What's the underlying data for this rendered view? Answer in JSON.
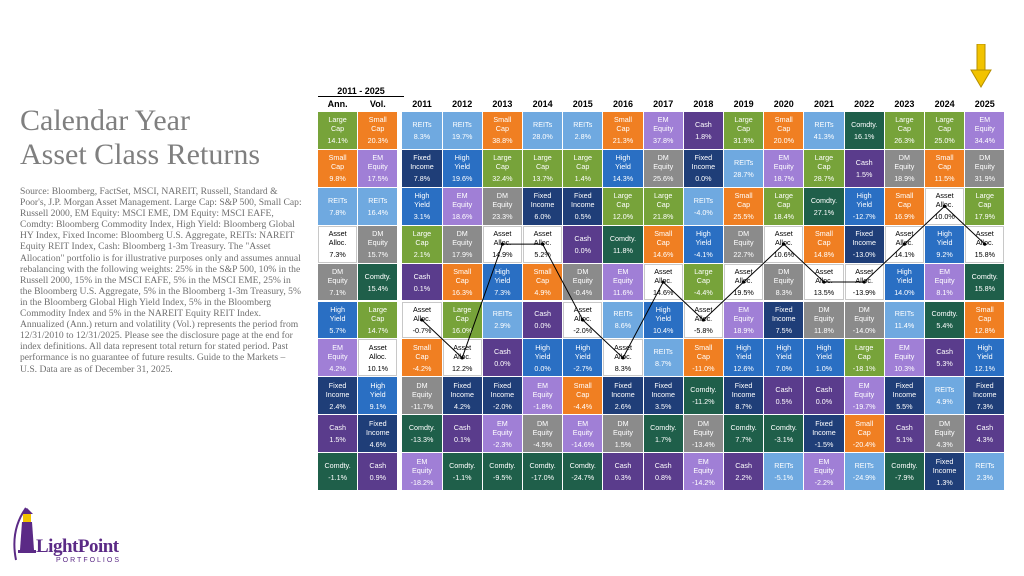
{
  "title": "Calendar Year\nAsset Class Returns",
  "source": "Source: Bloomberg, FactSet, MSCI, NAREIT, Russell, Standard & Poor's, J.P. Morgan Asset Management.  Large Cap: S&P 500, Small Cap: Russell 2000, EM Equity: MSCI EME, DM Equity: MSCI EAFE, Comdty: Bloomberg Commodity Index, High Yield: Bloomberg Global HY Index, Fixed Income: Bloomberg U.S. Aggregate, REITs: NAREIT Equity REIT Index, Cash: Bloomberg 1-3m Treasury. The \"Asset Allocation\" portfolio is for illustrative purposes only and assumes annual rebalancing with the following weights: 25% in the S&P 500, 10% in the Russell 2000, 15% in the MSCI EAFE, 5% in the MSCI EME, 25% in the Bloomberg U.S. Aggregate, 5% in the Bloomberg 1-3m Treasury, 5% in the Bloomberg Global High Yield Index, 5% in the Bloomberg Commodity Index and 5% in the NAREIT Equity REIT Index. Annualized (Ann.) return and volatility (Vol.) represents the period from 12/31/2010 to 12/31/2025. Please see the disclosure page at the end for index definitions. All data represent total return for stated period. Past performance is no guarantee of future results. Guide to the Markets – U.S. Data are as of December 31, 2025.",
  "logo": {
    "name": "LightPoint",
    "sub": "PORTFOLIOS"
  },
  "chart_data": {
    "type": "table",
    "period_label": "2011 - 2025",
    "columns": [
      "Ann.",
      "Vol.",
      "2011",
      "2012",
      "2013",
      "2014",
      "2015",
      "2016",
      "2017",
      "2018",
      "2019",
      "2020",
      "2021",
      "2022",
      "2023",
      "2024",
      "2025"
    ],
    "colors": {
      "Large Cap": "#77a33a",
      "Small Cap": "#f07f22",
      "EM Equity": "#a07fd6",
      "REITs": "#6fa9e0",
      "DM Equity": "#8b8b8b",
      "Asset Alloc.": "#ffffff",
      "Fixed Income": "#1f3e78",
      "High Yield": "#2a6fc3",
      "Cash": "#5a3c8c",
      "Comdty.": "#1f5f4a"
    },
    "grid": [
      [
        [
          "Large Cap",
          "14.1%"
        ],
        [
          "Small Cap",
          "20.3%"
        ],
        [
          "REITs",
          "8.3%"
        ],
        [
          "REITs",
          "19.7%"
        ],
        [
          "Small Cap",
          "38.8%"
        ],
        [
          "REITs",
          "28.0%"
        ],
        [
          "REITs",
          "2.8%"
        ],
        [
          "Small Cap",
          "21.3%"
        ],
        [
          "EM Equity",
          "37.8%"
        ],
        [
          "Cash",
          "1.8%"
        ],
        [
          "Large Cap",
          "31.5%"
        ],
        [
          "Small Cap",
          "20.0%"
        ],
        [
          "REITs",
          "41.3%"
        ],
        [
          "Comdty.",
          "16.1%"
        ],
        [
          "Large Cap",
          "26.3%"
        ],
        [
          "Large Cap",
          "25.0%"
        ],
        [
          "EM Equity",
          "34.4%"
        ]
      ],
      [
        [
          "Small Cap",
          "9.8%"
        ],
        [
          "EM Equity",
          "17.5%"
        ],
        [
          "Fixed Income",
          "7.8%"
        ],
        [
          "High Yield",
          "19.6%"
        ],
        [
          "Large Cap",
          "32.4%"
        ],
        [
          "Large Cap",
          "13.7%"
        ],
        [
          "Large Cap",
          "1.4%"
        ],
        [
          "High Yield",
          "14.3%"
        ],
        [
          "DM Equity",
          "25.6%"
        ],
        [
          "Fixed Income",
          "0.0%"
        ],
        [
          "REITs",
          "28.7%"
        ],
        [
          "EM Equity",
          "18.7%"
        ],
        [
          "Large Cap",
          "28.7%"
        ],
        [
          "Cash",
          "1.5%"
        ],
        [
          "DM Equity",
          "18.9%"
        ],
        [
          "Small Cap",
          "11.5%"
        ],
        [
          "DM Equity",
          "31.9%"
        ]
      ],
      [
        [
          "REITs",
          "7.8%"
        ],
        [
          "REITs",
          "16.4%"
        ],
        [
          "High Yield",
          "3.1%"
        ],
        [
          "EM Equity",
          "18.6%"
        ],
        [
          "DM Equity",
          "23.3%"
        ],
        [
          "Fixed Income",
          "6.0%"
        ],
        [
          "Fixed Income",
          "0.5%"
        ],
        [
          "Large Cap",
          "12.0%"
        ],
        [
          "Large Cap",
          "21.8%"
        ],
        [
          "REITs",
          "-4.0%"
        ],
        [
          "Small Cap",
          "25.5%"
        ],
        [
          "Large Cap",
          "18.4%"
        ],
        [
          "Comdty.",
          "27.1%"
        ],
        [
          "High Yield",
          "-12.7%"
        ],
        [
          "Small Cap",
          "16.9%"
        ],
        [
          "Asset Alloc.",
          "10.0%"
        ],
        [
          "Large Cap",
          "17.9%"
        ]
      ],
      [
        [
          "Asset Alloc.",
          "7.3%"
        ],
        [
          "DM Equity",
          "15.7%"
        ],
        [
          "Large Cap",
          "2.1%"
        ],
        [
          "DM Equity",
          "17.9%"
        ],
        [
          "Asset Alloc.",
          "14.9%"
        ],
        [
          "Asset Alloc.",
          "5.2%"
        ],
        [
          "Cash",
          "0.0%"
        ],
        [
          "Comdty.",
          "11.8%"
        ],
        [
          "Small Cap",
          "14.6%"
        ],
        [
          "High Yield",
          "-4.1%"
        ],
        [
          "DM Equity",
          "22.7%"
        ],
        [
          "Asset Alloc.",
          "10.6%"
        ],
        [
          "Small Cap",
          "14.8%"
        ],
        [
          "Fixed Income",
          "-13.0%"
        ],
        [
          "Asset Alloc.",
          "14.1%"
        ],
        [
          "High Yield",
          "9.2%"
        ],
        [
          "Asset Alloc.",
          "15.8%"
        ]
      ],
      [
        [
          "DM Equity",
          "7.1%"
        ],
        [
          "Comdty.",
          "15.4%"
        ],
        [
          "Cash",
          "0.1%"
        ],
        [
          "Small Cap",
          "16.3%"
        ],
        [
          "High Yield",
          "7.3%"
        ],
        [
          "Small Cap",
          "4.9%"
        ],
        [
          "DM Equity",
          "-0.4%"
        ],
        [
          "EM Equity",
          "11.6%"
        ],
        [
          "Asset Alloc.",
          "14.6%"
        ],
        [
          "Large Cap",
          "-4.4%"
        ],
        [
          "Asset Alloc.",
          "19.5%"
        ],
        [
          "DM Equity",
          "8.3%"
        ],
        [
          "Asset Alloc.",
          "13.5%"
        ],
        [
          "Asset Alloc.",
          "-13.9%"
        ],
        [
          "High Yield",
          "14.0%"
        ],
        [
          "EM Equity",
          "8.1%"
        ],
        [
          "Comdty.",
          "15.8%"
        ]
      ],
      [
        [
          "High Yield",
          "5.7%"
        ],
        [
          "Large Cap",
          "14.7%"
        ],
        [
          "Asset Alloc.",
          "-0.7%"
        ],
        [
          "Large Cap",
          "16.0%"
        ],
        [
          "REITs",
          "2.9%"
        ],
        [
          "Cash",
          "0.0%"
        ],
        [
          "Asset Alloc.",
          "-2.0%"
        ],
        [
          "REITs",
          "8.6%"
        ],
        [
          "High Yield",
          "10.4%"
        ],
        [
          "Asset Alloc.",
          "-5.8%"
        ],
        [
          "EM Equity",
          "18.9%"
        ],
        [
          "Fixed Income",
          "7.5%"
        ],
        [
          "DM Equity",
          "11.8%"
        ],
        [
          "DM Equity",
          "-14.0%"
        ],
        [
          "REITs",
          "11.4%"
        ],
        [
          "Comdty.",
          "5.4%"
        ],
        [
          "Small Cap",
          "12.8%"
        ]
      ],
      [
        [
          "EM Equity",
          "4.2%"
        ],
        [
          "Asset Alloc.",
          "10.1%"
        ],
        [
          "Small Cap",
          "-4.2%"
        ],
        [
          "Asset Alloc.",
          "12.2%"
        ],
        [
          "Cash",
          "0.0%"
        ],
        [
          "High Yield",
          "0.0%"
        ],
        [
          "High Yield",
          "-2.7%"
        ],
        [
          "Asset Alloc.",
          "8.3%"
        ],
        [
          "REITs",
          "8.7%"
        ],
        [
          "Small Cap",
          "-11.0%"
        ],
        [
          "High Yield",
          "12.6%"
        ],
        [
          "High Yield",
          "7.0%"
        ],
        [
          "High Yield",
          "1.0%"
        ],
        [
          "Large Cap",
          "-18.1%"
        ],
        [
          "EM Equity",
          "10.3%"
        ],
        [
          "Cash",
          "5.3%"
        ],
        [
          "High Yield",
          "12.1%"
        ]
      ],
      [
        [
          "Fixed Income",
          "2.4%"
        ],
        [
          "High Yield",
          "9.1%"
        ],
        [
          "DM Equity",
          "-11.7%"
        ],
        [
          "Fixed Income",
          "4.2%"
        ],
        [
          "Fixed Income",
          "-2.0%"
        ],
        [
          "EM Equity",
          "-1.8%"
        ],
        [
          "Small Cap",
          "-4.4%"
        ],
        [
          "Fixed Income",
          "2.6%"
        ],
        [
          "Fixed Income",
          "3.5%"
        ],
        [
          "Comdty.",
          "-11.2%"
        ],
        [
          "Fixed Income",
          "8.7%"
        ],
        [
          "Cash",
          "0.5%"
        ],
        [
          "Cash",
          "0.0%"
        ],
        [
          "EM Equity",
          "-19.7%"
        ],
        [
          "Fixed Income",
          "5.5%"
        ],
        [
          "REITs",
          "4.9%"
        ],
        [
          "Fixed Income",
          "7.3%"
        ]
      ],
      [
        [
          "Cash",
          "1.5%"
        ],
        [
          "Fixed Income",
          "4.6%"
        ],
        [
          "Comdty.",
          "-13.3%"
        ],
        [
          "Cash",
          "0.1%"
        ],
        [
          "EM Equity",
          "-2.3%"
        ],
        [
          "DM Equity",
          "-4.5%"
        ],
        [
          "EM Equity",
          "-14.6%"
        ],
        [
          "DM Equity",
          "1.5%"
        ],
        [
          "Comdty.",
          "1.7%"
        ],
        [
          "DM Equity",
          "-13.4%"
        ],
        [
          "Comdty.",
          "7.7%"
        ],
        [
          "Comdty.",
          "-3.1%"
        ],
        [
          "Fixed Income",
          "-1.5%"
        ],
        [
          "Small Cap",
          "-20.4%"
        ],
        [
          "Cash",
          "5.1%"
        ],
        [
          "DM Equity",
          "4.3%"
        ],
        [
          "Cash",
          "4.3%"
        ]
      ],
      [
        [
          "Comdty.",
          "-1.1%"
        ],
        [
          "Cash",
          "0.9%"
        ],
        [
          "EM Equity",
          "-18.2%"
        ],
        [
          "Comdty.",
          "-1.1%"
        ],
        [
          "Comdty.",
          "-9.5%"
        ],
        [
          "Comdty.",
          "-17.0%"
        ],
        [
          "Comdty.",
          "-24.7%"
        ],
        [
          "Cash",
          "0.3%"
        ],
        [
          "Cash",
          "0.8%"
        ],
        [
          "EM Equity",
          "-14.2%"
        ],
        [
          "Cash",
          "2.2%"
        ],
        [
          "REITs",
          "-5.1%"
        ],
        [
          "EM Equity",
          "-2.2%"
        ],
        [
          "REITs",
          "-24.9%"
        ],
        [
          "Comdty.",
          "-7.9%"
        ],
        [
          "Fixed Income",
          "1.3%"
        ],
        [
          "REITs",
          "2.3%"
        ]
      ]
    ]
  }
}
